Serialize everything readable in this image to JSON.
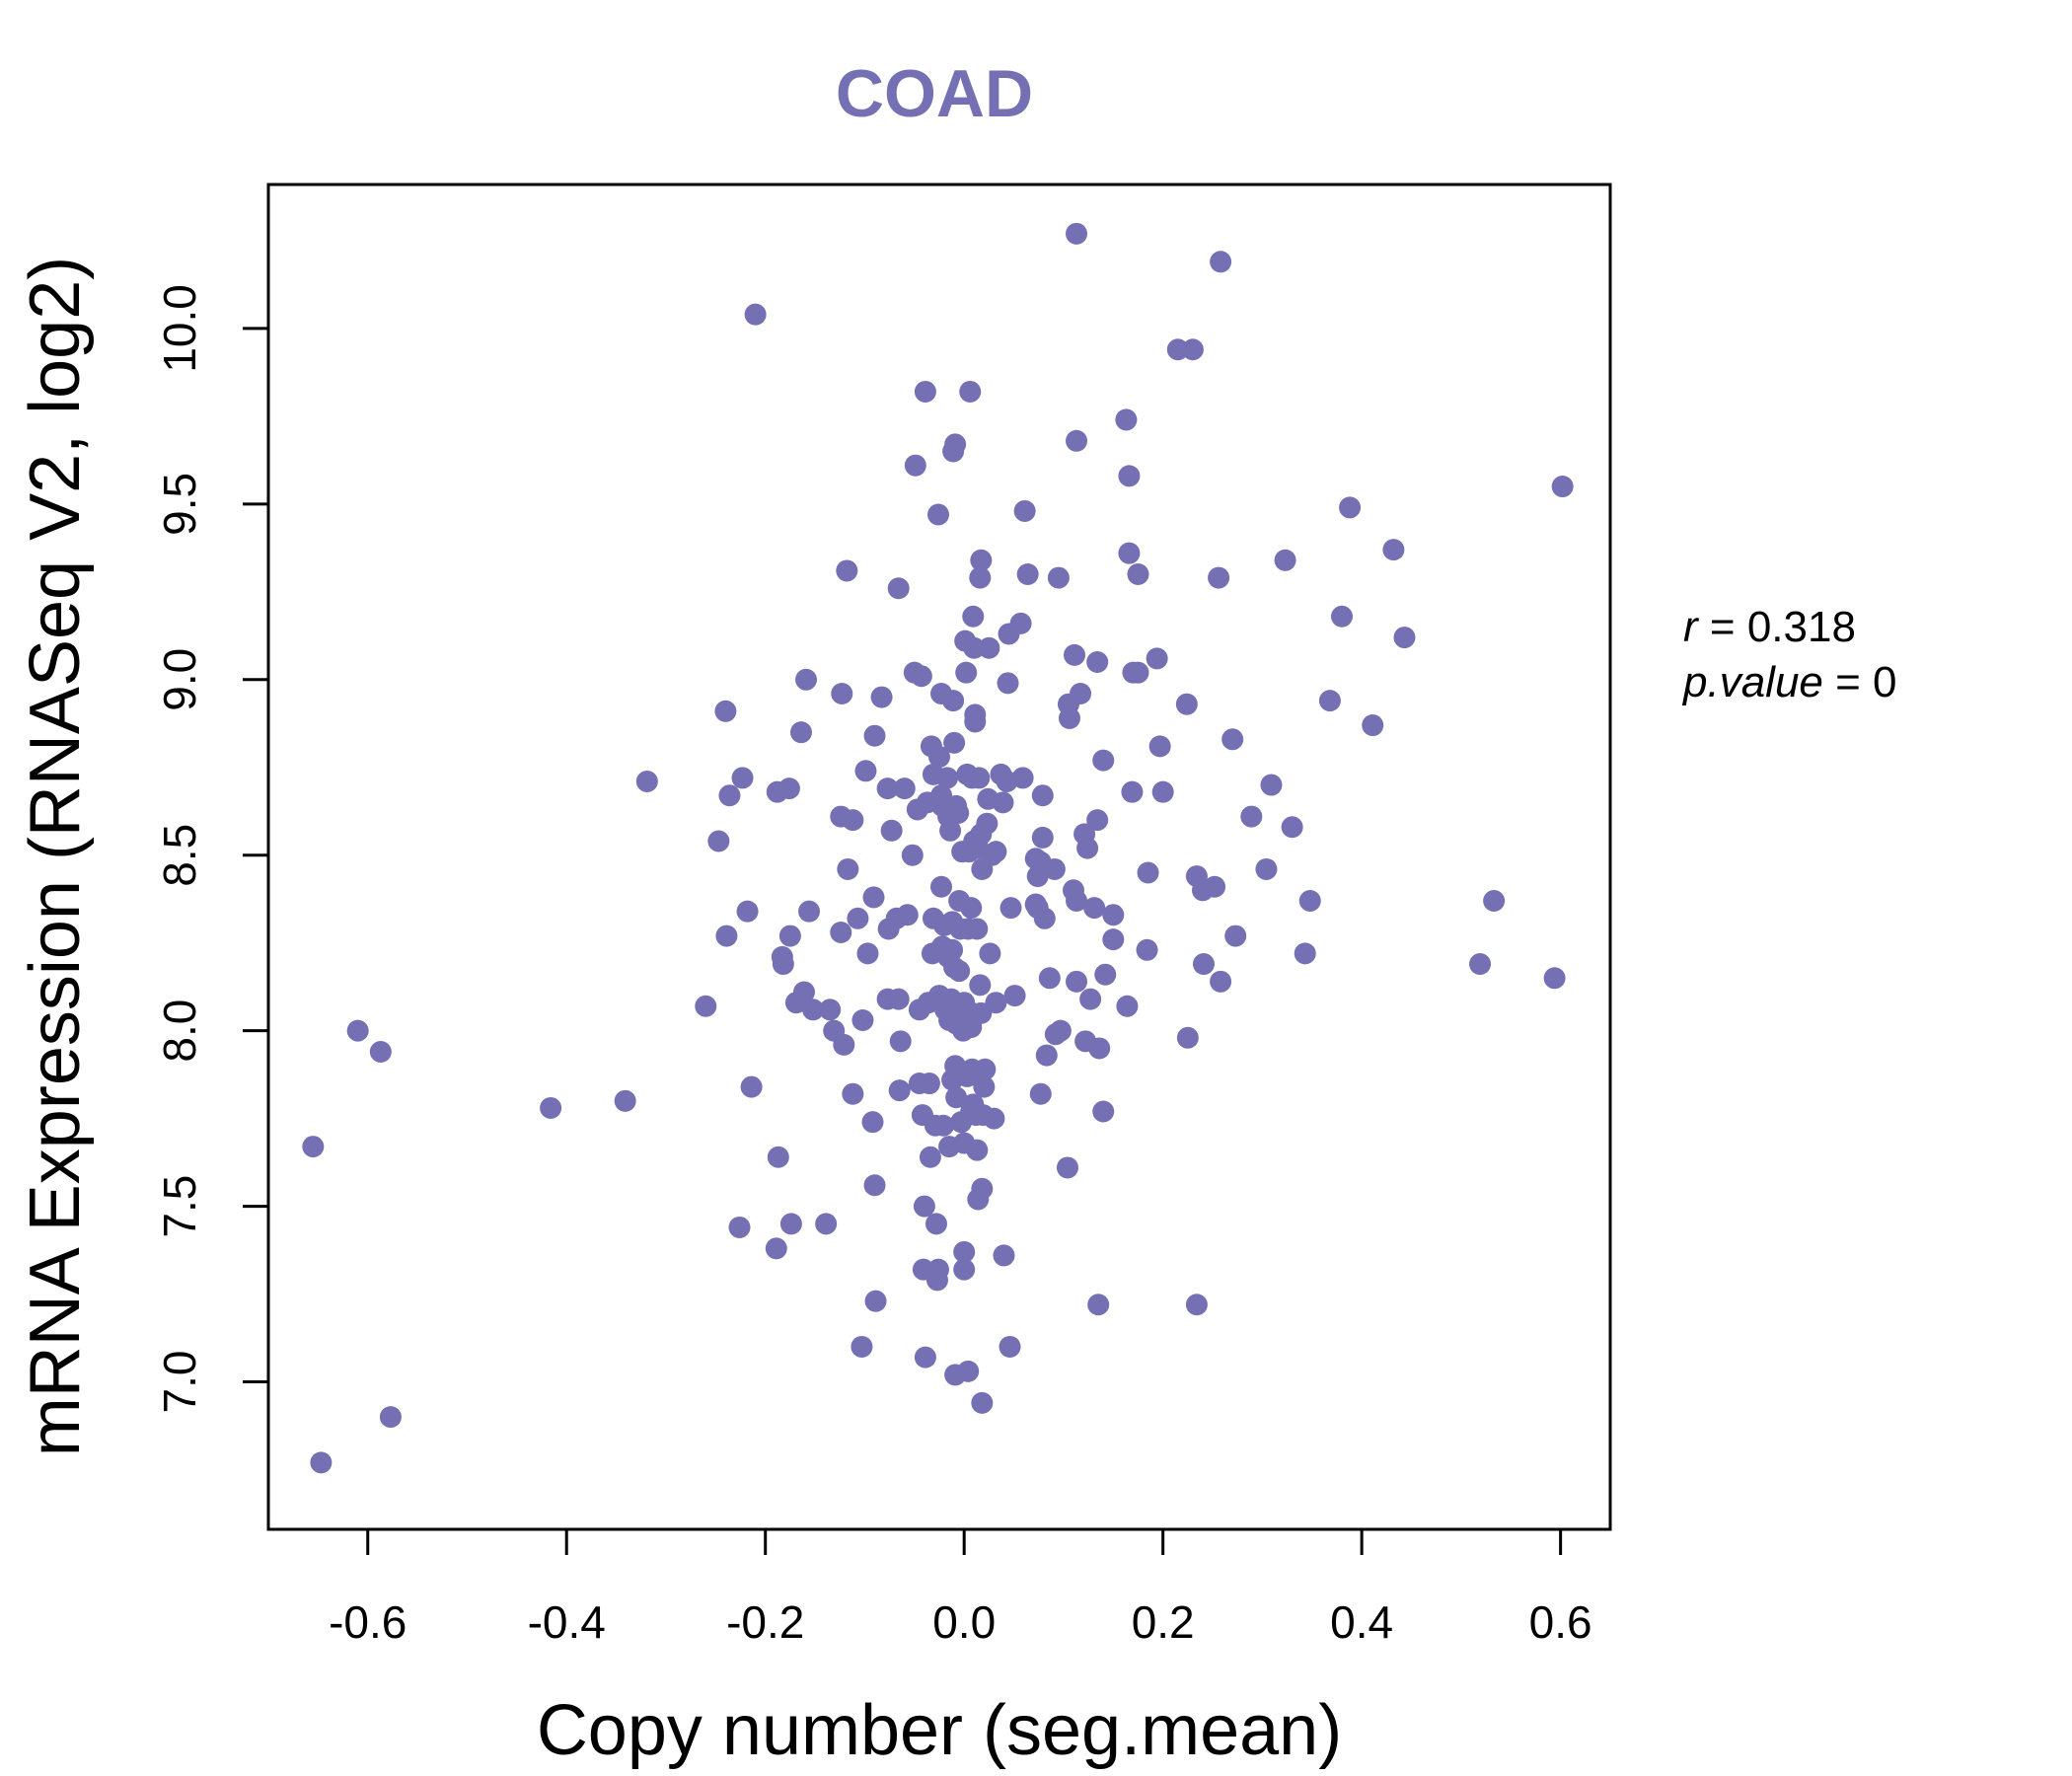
{
  "chart_data": {
    "type": "scatter",
    "title": "COAD",
    "xlabel": "Copy number (seg.mean)",
    "ylabel": "mRNA Expression (RNASeq V2, log2)",
    "xlim": [
      -0.7,
      0.65
    ],
    "ylim": [
      6.58,
      10.41
    ],
    "x_ticks": [
      -0.6,
      -0.4,
      -0.2,
      0.0,
      0.2,
      0.4,
      0.6
    ],
    "x_tick_labels": [
      "-0.6",
      "-0.4",
      "-0.2",
      "0.0",
      "0.2",
      "0.4",
      "0.6"
    ],
    "y_ticks": [
      7.0,
      7.5,
      8.0,
      8.5,
      9.0,
      9.5,
      10.0
    ],
    "y_tick_labels": [
      "7.0",
      "7.5",
      "8.0",
      "8.5",
      "9.0",
      "9.5",
      "10.0"
    ],
    "point_color": "#7570b3",
    "title_color": "#7570b3",
    "stats": {
      "r_label": "r",
      "r_value": "0.318",
      "p_label": "p.value",
      "p_value": "0"
    },
    "points": [
      [
        -0.655,
        7.67
      ],
      [
        -0.647,
        6.77
      ],
      [
        -0.61,
        8.0
      ],
      [
        -0.587,
        7.94
      ],
      [
        -0.577,
        6.9
      ],
      [
        -0.416,
        7.78
      ],
      [
        -0.341,
        7.8
      ],
      [
        -0.319,
        8.71
      ],
      [
        -0.26,
        8.07
      ],
      [
        -0.247,
        8.54
      ],
      [
        -0.24,
        8.91
      ],
      [
        -0.236,
        8.67
      ],
      [
        -0.239,
        8.27
      ],
      [
        -0.223,
        8.72
      ],
      [
        -0.226,
        7.44
      ],
      [
        -0.218,
        8.34
      ],
      [
        -0.214,
        7.84
      ],
      [
        -0.21,
        10.04
      ],
      [
        -0.188,
        8.68
      ],
      [
        -0.187,
        7.64
      ],
      [
        -0.189,
        7.38
      ],
      [
        -0.183,
        8.21
      ],
      [
        -0.182,
        8.19
      ],
      [
        -0.176,
        8.69
      ],
      [
        -0.175,
        8.27
      ],
      [
        -0.174,
        7.45
      ],
      [
        -0.169,
        8.08
      ],
      [
        -0.164,
        8.85
      ],
      [
        -0.161,
        8.11
      ],
      [
        -0.159,
        9.0
      ],
      [
        -0.156,
        8.34
      ],
      [
        -0.152,
        8.06
      ],
      [
        -0.139,
        7.45
      ],
      [
        -0.135,
        8.06
      ],
      [
        -0.131,
        8.0
      ],
      [
        -0.124,
        8.61
      ],
      [
        -0.124,
        8.28
      ],
      [
        -0.123,
        8.96
      ],
      [
        -0.121,
        7.96
      ],
      [
        -0.118,
        9.31
      ],
      [
        -0.117,
        8.46
      ],
      [
        -0.112,
        8.6
      ],
      [
        -0.112,
        7.82
      ],
      [
        -0.107,
        8.32
      ],
      [
        -0.103,
        7.1
      ],
      [
        -0.102,
        8.03
      ],
      [
        -0.099,
        8.74
      ],
      [
        -0.097,
        8.22
      ],
      [
        -0.092,
        7.74
      ],
      [
        -0.09,
        8.84
      ],
      [
        -0.091,
        8.38
      ],
      [
        -0.09,
        7.56
      ],
      [
        -0.089,
        7.23
      ],
      [
        -0.083,
        8.95
      ],
      [
        -0.077,
        8.69
      ],
      [
        -0.077,
        8.09
      ],
      [
        -0.076,
        8.29
      ],
      [
        -0.073,
        8.57
      ],
      [
        -0.068,
        8.32
      ],
      [
        -0.066,
        8.09
      ],
      [
        -0.066,
        9.26
      ],
      [
        -0.065,
        7.83
      ],
      [
        -0.064,
        7.97
      ],
      [
        -0.06,
        8.69
      ],
      [
        -0.057,
        8.33
      ],
      [
        -0.052,
        8.5
      ],
      [
        -0.05,
        9.02
      ],
      [
        -0.049,
        9.61
      ],
      [
        -0.047,
        8.63
      ],
      [
        -0.045,
        8.06
      ],
      [
        -0.045,
        7.85
      ],
      [
        -0.043,
        9.01
      ],
      [
        -0.042,
        7.76
      ],
      [
        -0.041,
        7.32
      ],
      [
        -0.04,
        7.5
      ],
      [
        -0.039,
        7.07
      ],
      [
        -0.039,
        9.82
      ],
      [
        -0.037,
        8.65
      ],
      [
        -0.036,
        8.08
      ],
      [
        -0.035,
        7.85
      ],
      [
        -0.034,
        7.64
      ],
      [
        -0.033,
        8.81
      ],
      [
        -0.032,
        8.22
      ],
      [
        -0.031,
        8.73
      ],
      [
        -0.031,
        8.32
      ],
      [
        -0.029,
        7.73
      ],
      [
        -0.028,
        7.45
      ],
      [
        -0.027,
        7.29
      ],
      [
        -0.026,
        9.47
      ],
      [
        -0.026,
        7.32
      ],
      [
        -0.025,
        8.78
      ],
      [
        -0.025,
        8.1
      ],
      [
        -0.023,
        8.96
      ],
      [
        -0.023,
        8.41
      ],
      [
        -0.023,
        8.67
      ],
      [
        -0.022,
        8.64
      ],
      [
        -0.022,
        8.24
      ],
      [
        -0.021,
        7.73
      ],
      [
        -0.02,
        8.3
      ],
      [
        -0.019,
        8.06
      ],
      [
        -0.017,
        8.72
      ],
      [
        -0.016,
        8.61
      ],
      [
        -0.016,
        8.21
      ],
      [
        -0.015,
        8.03
      ],
      [
        -0.015,
        7.67
      ],
      [
        -0.014,
        8.57
      ],
      [
        -0.013,
        8.09
      ],
      [
        -0.012,
        8.31
      ],
      [
        -0.012,
        8.23
      ],
      [
        -0.012,
        7.86
      ],
      [
        -0.011,
        9.65
      ],
      [
        -0.011,
        8.94
      ],
      [
        -0.01,
        8.82
      ],
      [
        -0.01,
        8.18
      ],
      [
        -0.01,
        8.05
      ],
      [
        -0.009,
        7.9
      ],
      [
        -0.009,
        7.02
      ],
      [
        -0.009,
        9.67
      ],
      [
        -0.008,
        8.64
      ],
      [
        -0.008,
        8.02
      ],
      [
        -0.008,
        7.81
      ],
      [
        -0.006,
        8.62
      ],
      [
        -0.005,
        8.37
      ],
      [
        -0.005,
        8.17
      ],
      [
        -0.004,
        8.29
      ],
      [
        -0.004,
        8.06
      ],
      [
        -0.003,
        7.74
      ],
      [
        -0.002,
        8.51
      ],
      [
        -0.001,
        8.0
      ],
      [
        0.0,
        7.32
      ],
      [
        0.0,
        8.08
      ],
      [
        0.0,
        7.68
      ],
      [
        0.0,
        7.37
      ],
      [
        0.001,
        9.11
      ],
      [
        0.002,
        9.02
      ],
      [
        0.002,
        8.03
      ],
      [
        0.003,
        7.87
      ],
      [
        0.003,
        8.73
      ],
      [
        0.004,
        8.29
      ],
      [
        0.004,
        7.03
      ],
      [
        0.005,
        8.51
      ],
      [
        0.006,
        9.82
      ],
      [
        0.007,
        8.35
      ],
      [
        0.007,
        8.01
      ],
      [
        0.007,
        7.77
      ],
      [
        0.008,
        8.72
      ],
      [
        0.008,
        8.05
      ],
      [
        0.008,
        7.89
      ],
      [
        0.009,
        9.18
      ],
      [
        0.009,
        7.79
      ],
      [
        0.01,
        8.54
      ],
      [
        0.01,
        9.09
      ],
      [
        0.011,
        8.9
      ],
      [
        0.011,
        8.88
      ],
      [
        0.012,
        7.76
      ],
      [
        0.013,
        8.29
      ],
      [
        0.013,
        7.66
      ],
      [
        0.014,
        8.52
      ],
      [
        0.014,
        7.52
      ],
      [
        0.015,
        8.72
      ],
      [
        0.016,
        9.29
      ],
      [
        0.016,
        8.13
      ],
      [
        0.016,
        7.87
      ],
      [
        0.017,
        9.34
      ],
      [
        0.017,
        8.56
      ],
      [
        0.017,
        8.05
      ],
      [
        0.018,
        8.46
      ],
      [
        0.018,
        7.55
      ],
      [
        0.018,
        6.94
      ],
      [
        0.019,
        7.76
      ],
      [
        0.02,
        7.84
      ],
      [
        0.021,
        7.89
      ],
      [
        0.023,
        8.59
      ],
      [
        0.024,
        8.66
      ],
      [
        0.025,
        9.09
      ],
      [
        0.026,
        8.22
      ],
      [
        0.028,
        8.5
      ],
      [
        0.03,
        7.75
      ],
      [
        0.032,
        8.51
      ],
      [
        0.032,
        8.08
      ],
      [
        0.037,
        8.73
      ],
      [
        0.039,
        8.65
      ],
      [
        0.04,
        7.36
      ],
      [
        0.043,
        8.71
      ],
      [
        0.044,
        8.99
      ],
      [
        0.045,
        9.13
      ],
      [
        0.046,
        7.1
      ],
      [
        0.047,
        8.35
      ],
      [
        0.051,
        8.1
      ],
      [
        0.057,
        9.16
      ],
      [
        0.059,
        8.72
      ],
      [
        0.061,
        9.48
      ],
      [
        0.064,
        9.3
      ],
      [
        0.072,
        8.36
      ],
      [
        0.072,
        8.49
      ],
      [
        0.074,
        8.44
      ],
      [
        0.074,
        8.35
      ],
      [
        0.077,
        8.48
      ],
      [
        0.077,
        7.82
      ],
      [
        0.079,
        8.67
      ],
      [
        0.079,
        8.55
      ],
      [
        0.081,
        8.32
      ],
      [
        0.083,
        7.93
      ],
      [
        0.086,
        8.15
      ],
      [
        0.091,
        8.46
      ],
      [
        0.092,
        7.99
      ],
      [
        0.095,
        9.29
      ],
      [
        0.097,
        8.0
      ],
      [
        0.104,
        7.61
      ],
      [
        0.105,
        8.93
      ],
      [
        0.106,
        8.89
      ],
      [
        0.11,
        8.4
      ],
      [
        0.111,
        9.07
      ],
      [
        0.113,
        8.37
      ],
      [
        0.113,
        9.68
      ],
      [
        0.113,
        10.27
      ],
      [
        0.113,
        8.14
      ],
      [
        0.117,
        8.96
      ],
      [
        0.121,
        8.56
      ],
      [
        0.122,
        7.97
      ],
      [
        0.124,
        8.52
      ],
      [
        0.127,
        8.09
      ],
      [
        0.131,
        8.35
      ],
      [
        0.134,
        9.05
      ],
      [
        0.134,
        8.6
      ],
      [
        0.135,
        7.22
      ],
      [
        0.136,
        7.95
      ],
      [
        0.14,
        8.77
      ],
      [
        0.14,
        7.77
      ],
      [
        0.142,
        8.16
      ],
      [
        0.15,
        8.33
      ],
      [
        0.15,
        8.26
      ],
      [
        0.163,
        9.74
      ],
      [
        0.164,
        8.07
      ],
      [
        0.166,
        9.58
      ],
      [
        0.166,
        9.36
      ],
      [
        0.169,
        8.68
      ],
      [
        0.17,
        9.02
      ],
      [
        0.175,
        9.02
      ],
      [
        0.175,
        9.3
      ],
      [
        0.184,
        8.23
      ],
      [
        0.185,
        8.45
      ],
      [
        0.194,
        9.06
      ],
      [
        0.197,
        8.81
      ],
      [
        0.2,
        8.68
      ],
      [
        0.215,
        9.94
      ],
      [
        0.224,
        8.93
      ],
      [
        0.225,
        7.98
      ],
      [
        0.23,
        9.94
      ],
      [
        0.234,
        8.44
      ],
      [
        0.234,
        7.22
      ],
      [
        0.24,
        8.4
      ],
      [
        0.241,
        8.19
      ],
      [
        0.252,
        8.41
      ],
      [
        0.256,
        9.29
      ],
      [
        0.258,
        10.19
      ],
      [
        0.258,
        8.14
      ],
      [
        0.27,
        8.83
      ],
      [
        0.273,
        8.27
      ],
      [
        0.289,
        8.61
      ],
      [
        0.304,
        8.46
      ],
      [
        0.309,
        8.7
      ],
      [
        0.323,
        9.34
      ],
      [
        0.33,
        8.58
      ],
      [
        0.343,
        8.22
      ],
      [
        0.348,
        8.37
      ],
      [
        0.368,
        8.94
      ],
      [
        0.38,
        9.18
      ],
      [
        0.388,
        9.49
      ],
      [
        0.411,
        8.87
      ],
      [
        0.432,
        9.37
      ],
      [
        0.443,
        9.12
      ],
      [
        0.519,
        8.19
      ],
      [
        0.533,
        8.37
      ],
      [
        0.594,
        8.15
      ],
      [
        0.602,
        9.55
      ]
    ]
  }
}
